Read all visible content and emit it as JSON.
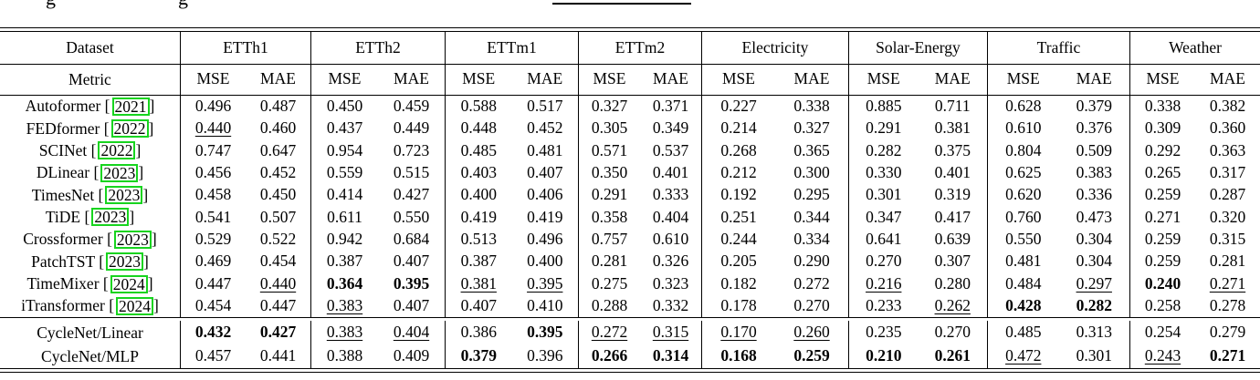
{
  "caption": {
    "left_fragment": "g",
    "right_fragment": "g"
  },
  "colors": {
    "background": "#ffffff",
    "text": "#000000",
    "rule": "#000000",
    "citation_box": "#17d41f"
  },
  "table": {
    "corner_top": "Dataset",
    "corner_bottom": "Metric",
    "metrics": [
      "MSE",
      "MAE"
    ],
    "datasets": [
      "ETTh1",
      "ETTh2",
      "ETTm1",
      "ETTm2",
      "Electricity",
      "Solar-Energy",
      "Traffic",
      "Weather"
    ],
    "model_rows": [
      {
        "name": "Autoformer",
        "year": "2021",
        "values": [
          "0.496",
          "0.487",
          "0.450",
          "0.459",
          "0.588",
          "0.517",
          "0.327",
          "0.371",
          "0.227",
          "0.338",
          "0.885",
          "0.711",
          "0.628",
          "0.379",
          "0.338",
          "0.382"
        ],
        "styles": [
          "",
          "",
          "",
          "",
          "",
          "",
          "",
          "",
          "",
          "",
          "",
          "",
          "",
          "",
          "",
          ""
        ]
      },
      {
        "name": "FEDformer",
        "year": "2022",
        "values": [
          "0.440",
          "0.460",
          "0.437",
          "0.449",
          "0.448",
          "0.452",
          "0.305",
          "0.349",
          "0.214",
          "0.327",
          "0.291",
          "0.381",
          "0.610",
          "0.376",
          "0.309",
          "0.360"
        ],
        "styles": [
          "u",
          "",
          "",
          "",
          "",
          "",
          "",
          "",
          "",
          "",
          "",
          "",
          "",
          "",
          "",
          ""
        ]
      },
      {
        "name": "SCINet",
        "year": "2022",
        "values": [
          "0.747",
          "0.647",
          "0.954",
          "0.723",
          "0.485",
          "0.481",
          "0.571",
          "0.537",
          "0.268",
          "0.365",
          "0.282",
          "0.375",
          "0.804",
          "0.509",
          "0.292",
          "0.363"
        ],
        "styles": [
          "",
          "",
          "",
          "",
          "",
          "",
          "",
          "",
          "",
          "",
          "",
          "",
          "",
          "",
          "",
          ""
        ]
      },
      {
        "name": "DLinear",
        "year": "2023",
        "values": [
          "0.456",
          "0.452",
          "0.559",
          "0.515",
          "0.403",
          "0.407",
          "0.350",
          "0.401",
          "0.212",
          "0.300",
          "0.330",
          "0.401",
          "0.625",
          "0.383",
          "0.265",
          "0.317"
        ],
        "styles": [
          "",
          "",
          "",
          "",
          "",
          "",
          "",
          "",
          "",
          "",
          "",
          "",
          "",
          "",
          "",
          ""
        ]
      },
      {
        "name": "TimesNet",
        "year": "2023",
        "values": [
          "0.458",
          "0.450",
          "0.414",
          "0.427",
          "0.400",
          "0.406",
          "0.291",
          "0.333",
          "0.192",
          "0.295",
          "0.301",
          "0.319",
          "0.620",
          "0.336",
          "0.259",
          "0.287"
        ],
        "styles": [
          "",
          "",
          "",
          "",
          "",
          "",
          "",
          "",
          "",
          "",
          "",
          "",
          "",
          "",
          "",
          ""
        ]
      },
      {
        "name": "TiDE",
        "year": "2023",
        "values": [
          "0.541",
          "0.507",
          "0.611",
          "0.550",
          "0.419",
          "0.419",
          "0.358",
          "0.404",
          "0.251",
          "0.344",
          "0.347",
          "0.417",
          "0.760",
          "0.473",
          "0.271",
          "0.320"
        ],
        "styles": [
          "",
          "",
          "",
          "",
          "",
          "",
          "",
          "",
          "",
          "",
          "",
          "",
          "",
          "",
          "",
          ""
        ]
      },
      {
        "name": "Crossformer",
        "year": "2023",
        "values": [
          "0.529",
          "0.522",
          "0.942",
          "0.684",
          "0.513",
          "0.496",
          "0.757",
          "0.610",
          "0.244",
          "0.334",
          "0.641",
          "0.639",
          "0.550",
          "0.304",
          "0.259",
          "0.315"
        ],
        "styles": [
          "",
          "",
          "",
          "",
          "",
          "",
          "",
          "",
          "",
          "",
          "",
          "",
          "",
          "",
          "",
          ""
        ]
      },
      {
        "name": "PatchTST",
        "year": "2023",
        "values": [
          "0.469",
          "0.454",
          "0.387",
          "0.407",
          "0.387",
          "0.400",
          "0.281",
          "0.326",
          "0.205",
          "0.290",
          "0.270",
          "0.307",
          "0.481",
          "0.304",
          "0.259",
          "0.281"
        ],
        "styles": [
          "",
          "",
          "",
          "",
          "",
          "",
          "",
          "",
          "",
          "",
          "",
          "",
          "",
          "",
          "",
          ""
        ]
      },
      {
        "name": "TimeMixer",
        "year": "2024",
        "values": [
          "0.447",
          "0.440",
          "0.364",
          "0.395",
          "0.381",
          "0.395",
          "0.275",
          "0.323",
          "0.182",
          "0.272",
          "0.216",
          "0.280",
          "0.484",
          "0.297",
          "0.240",
          "0.271"
        ],
        "styles": [
          "",
          "u",
          "b",
          "b",
          "u",
          "u",
          "",
          "",
          "",
          "",
          "u",
          "",
          "",
          "u",
          "b",
          "u"
        ]
      },
      {
        "name": "iTransformer",
        "year": "2024",
        "values": [
          "0.454",
          "0.447",
          "0.383",
          "0.407",
          "0.407",
          "0.410",
          "0.288",
          "0.332",
          "0.178",
          "0.270",
          "0.233",
          "0.262",
          "0.428",
          "0.282",
          "0.258",
          "0.278"
        ],
        "styles": [
          "",
          "",
          "u",
          "",
          "",
          "",
          "",
          "",
          "",
          "",
          "",
          "u",
          "b",
          "b",
          "",
          ""
        ]
      }
    ],
    "cyclenet_rows": [
      {
        "name": "CycleNet/Linear",
        "year": null,
        "values": [
          "0.432",
          "0.427",
          "0.383",
          "0.404",
          "0.386",
          "0.395",
          "0.272",
          "0.315",
          "0.170",
          "0.260",
          "0.235",
          "0.270",
          "0.485",
          "0.313",
          "0.254",
          "0.279"
        ],
        "styles": [
          "b",
          "b",
          "u",
          "u",
          "",
          "b",
          "u",
          "u",
          "u",
          "u",
          "",
          "",
          "",
          "",
          "",
          ""
        ]
      },
      {
        "name": "CycleNet/MLP",
        "year": null,
        "values": [
          "0.457",
          "0.441",
          "0.388",
          "0.409",
          "0.379",
          "0.396",
          "0.266",
          "0.314",
          "0.168",
          "0.259",
          "0.210",
          "0.261",
          "0.472",
          "0.301",
          "0.243",
          "0.271"
        ],
        "styles": [
          "",
          "",
          "",
          "",
          "b",
          "",
          "b",
          "b",
          "b",
          "b",
          "b",
          "b",
          "u",
          "",
          "u",
          "b"
        ]
      }
    ]
  }
}
